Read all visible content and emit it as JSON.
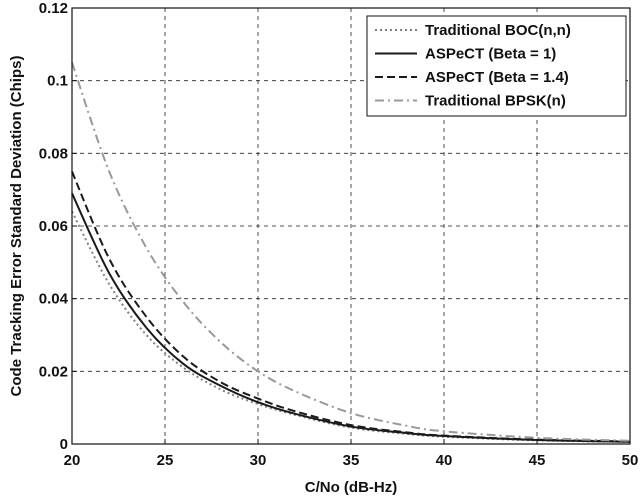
{
  "chart_data": {
    "type": "line",
    "title": "",
    "xlabel": "C/No (dB-Hz)",
    "ylabel": "Code Tracking Error Standard Deviation (Chips)",
    "xlim": [
      20,
      50
    ],
    "ylim": [
      0,
      0.12
    ],
    "xticks": [
      20,
      25,
      30,
      35,
      40,
      45,
      50
    ],
    "yticks": [
      0,
      0.02,
      0.04,
      0.06,
      0.08,
      0.1,
      0.12
    ],
    "ytick_labels": [
      "0",
      "0.02",
      "0.04",
      "0.06",
      "0.08",
      "0.1",
      "0.12"
    ],
    "grid": true,
    "legend_position": "top-right",
    "x": [
      20,
      22,
      24,
      26,
      28,
      30,
      32,
      35,
      38,
      40,
      45,
      50
    ],
    "series": [
      {
        "name": "Traditional BOC(n,n)",
        "style": "dotted",
        "color": "#808080",
        "values": [
          0.064,
          0.044,
          0.03,
          0.021,
          0.015,
          0.011,
          0.008,
          0.0045,
          0.0028,
          0.002,
          0.001,
          0.0006
        ]
      },
      {
        "name": "ASPeCT (Beta = 1)",
        "style": "solid",
        "color": "#1a1a1a",
        "values": [
          0.069,
          0.047,
          0.032,
          0.022,
          0.016,
          0.0115,
          0.0083,
          0.0048,
          0.003,
          0.0022,
          0.0011,
          0.0006
        ]
      },
      {
        "name": "ASPeCT (Beta = 1.4)",
        "style": "dashed",
        "color": "#1a1a1a",
        "values": [
          0.075,
          0.051,
          0.035,
          0.024,
          0.017,
          0.0125,
          0.009,
          0.0052,
          0.0032,
          0.0023,
          0.0012,
          0.0007
        ]
      },
      {
        "name": "Traditional BPSK(n)",
        "style": "dashdot",
        "color": "#999999",
        "values": [
          0.105,
          0.075,
          0.054,
          0.039,
          0.028,
          0.02,
          0.0145,
          0.0085,
          0.005,
          0.0035,
          0.0017,
          0.0009
        ]
      }
    ]
  }
}
